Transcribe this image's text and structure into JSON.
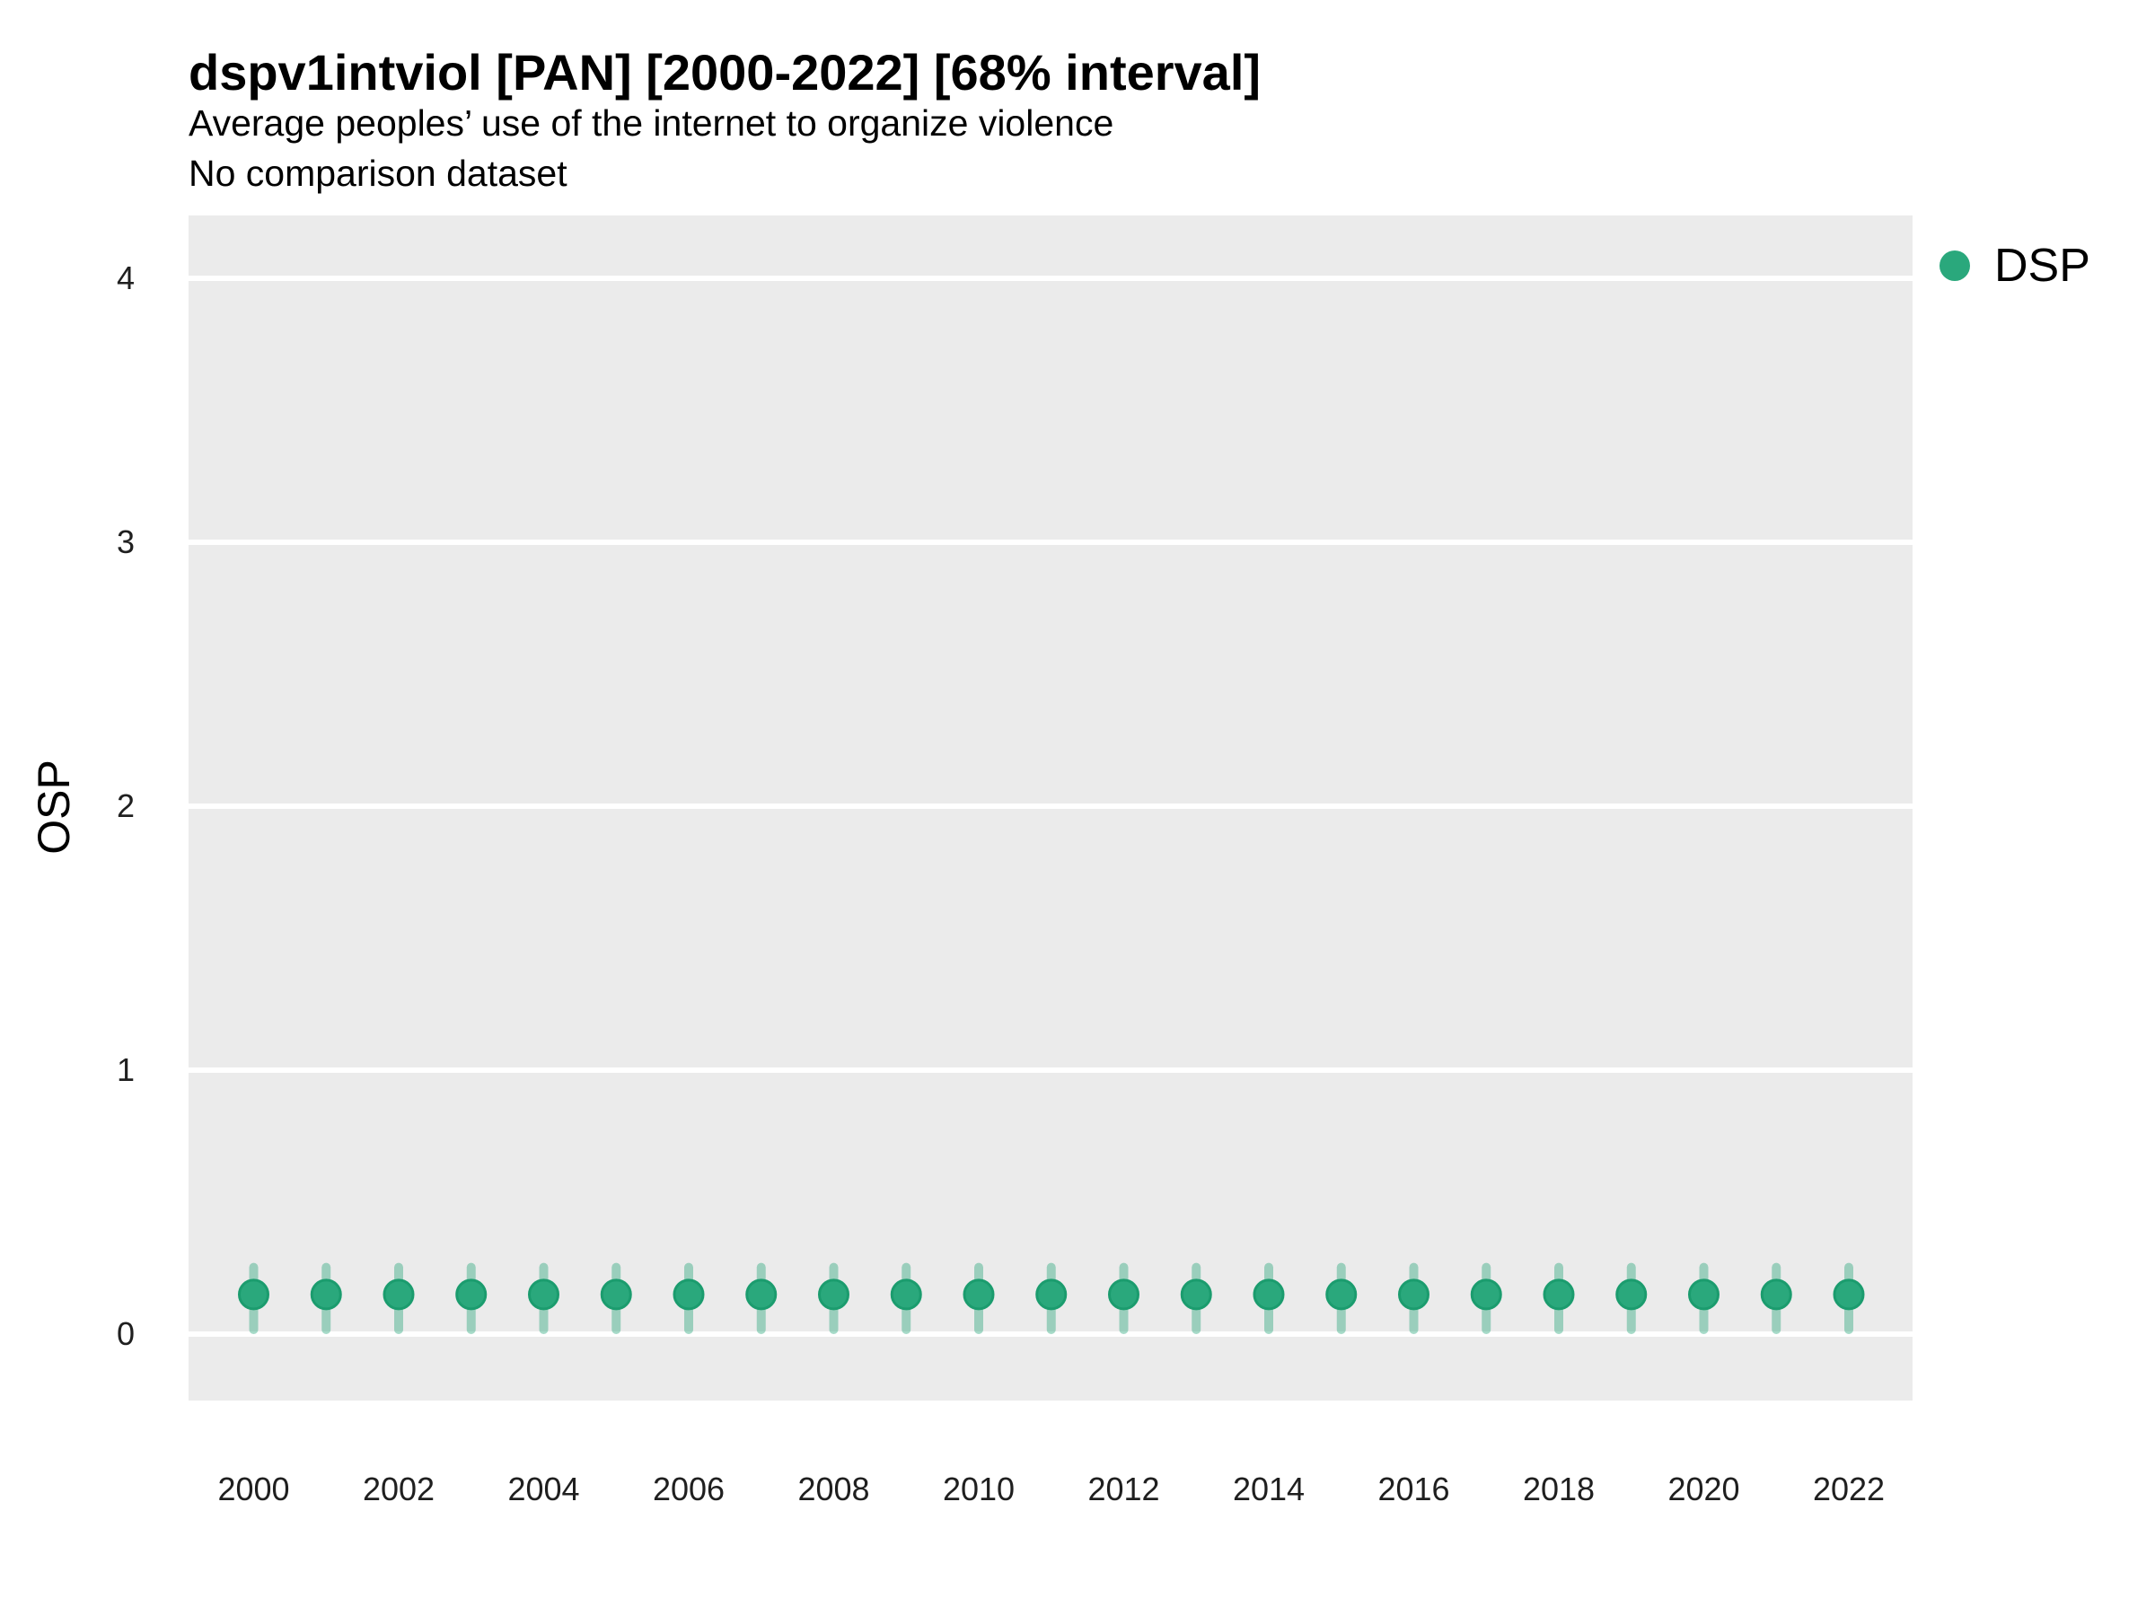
{
  "header": {
    "title": "dspv1intviol [PAN] [2000-2022] [68% interval]",
    "subtitle": "Average peoples’ use of the internet to organize violence",
    "subtitle2": "No comparison dataset"
  },
  "y_axis": {
    "label": "OSP",
    "ticks": [
      0,
      1,
      2,
      3,
      4
    ]
  },
  "x_axis": {
    "ticks": [
      2000,
      2002,
      2004,
      2006,
      2008,
      2010,
      2012,
      2014,
      2016,
      2018,
      2020,
      2022
    ]
  },
  "legend": {
    "label": "DSP"
  },
  "colors": {
    "point_fill": "#2aa87c",
    "point_stroke": "#1b9c6e",
    "interval_bar": "rgba(42, 168, 124, 0.42)",
    "panel_background": "#EBEBEB",
    "gridline": "#FFFFFF"
  },
  "chart_data": {
    "type": "scatter",
    "title": "dspv1intviol [PAN] [2000-2022] [68% interval]",
    "subtitle": "Average peoples’ use of the internet to organize violence",
    "note": "No comparison dataset",
    "xlabel": "",
    "ylabel": "OSP",
    "ylim": [
      -0.25,
      4.25
    ],
    "xlim": [
      1999.1,
      2022.9
    ],
    "grid": "white major gridlines on gray panel, no minor gridlines, no axis lines",
    "legend_position": "right",
    "interval_level": "68%",
    "x": [
      2000,
      2001,
      2002,
      2003,
      2004,
      2005,
      2006,
      2007,
      2008,
      2009,
      2010,
      2011,
      2012,
      2013,
      2014,
      2015,
      2016,
      2017,
      2018,
      2019,
      2020,
      2021,
      2022
    ],
    "series": [
      {
        "name": "DSP",
        "values": [
          0.15,
          0.15,
          0.15,
          0.15,
          0.15,
          0.15,
          0.15,
          0.15,
          0.15,
          0.15,
          0.15,
          0.15,
          0.15,
          0.15,
          0.15,
          0.15,
          0.15,
          0.15,
          0.15,
          0.15,
          0.15,
          0.15,
          0.15
        ],
        "interval_low": [
          0.0,
          0.0,
          0.0,
          0.0,
          0.0,
          0.0,
          0.0,
          0.0,
          0.0,
          0.0,
          0.0,
          0.0,
          0.0,
          0.0,
          0.0,
          0.0,
          0.0,
          0.0,
          0.0,
          0.0,
          0.0,
          0.0,
          0.0
        ],
        "interval_high": [
          0.27,
          0.27,
          0.27,
          0.27,
          0.27,
          0.27,
          0.27,
          0.27,
          0.27,
          0.27,
          0.27,
          0.27,
          0.27,
          0.27,
          0.27,
          0.27,
          0.27,
          0.27,
          0.27,
          0.27,
          0.27,
          0.27,
          0.27
        ]
      }
    ]
  }
}
